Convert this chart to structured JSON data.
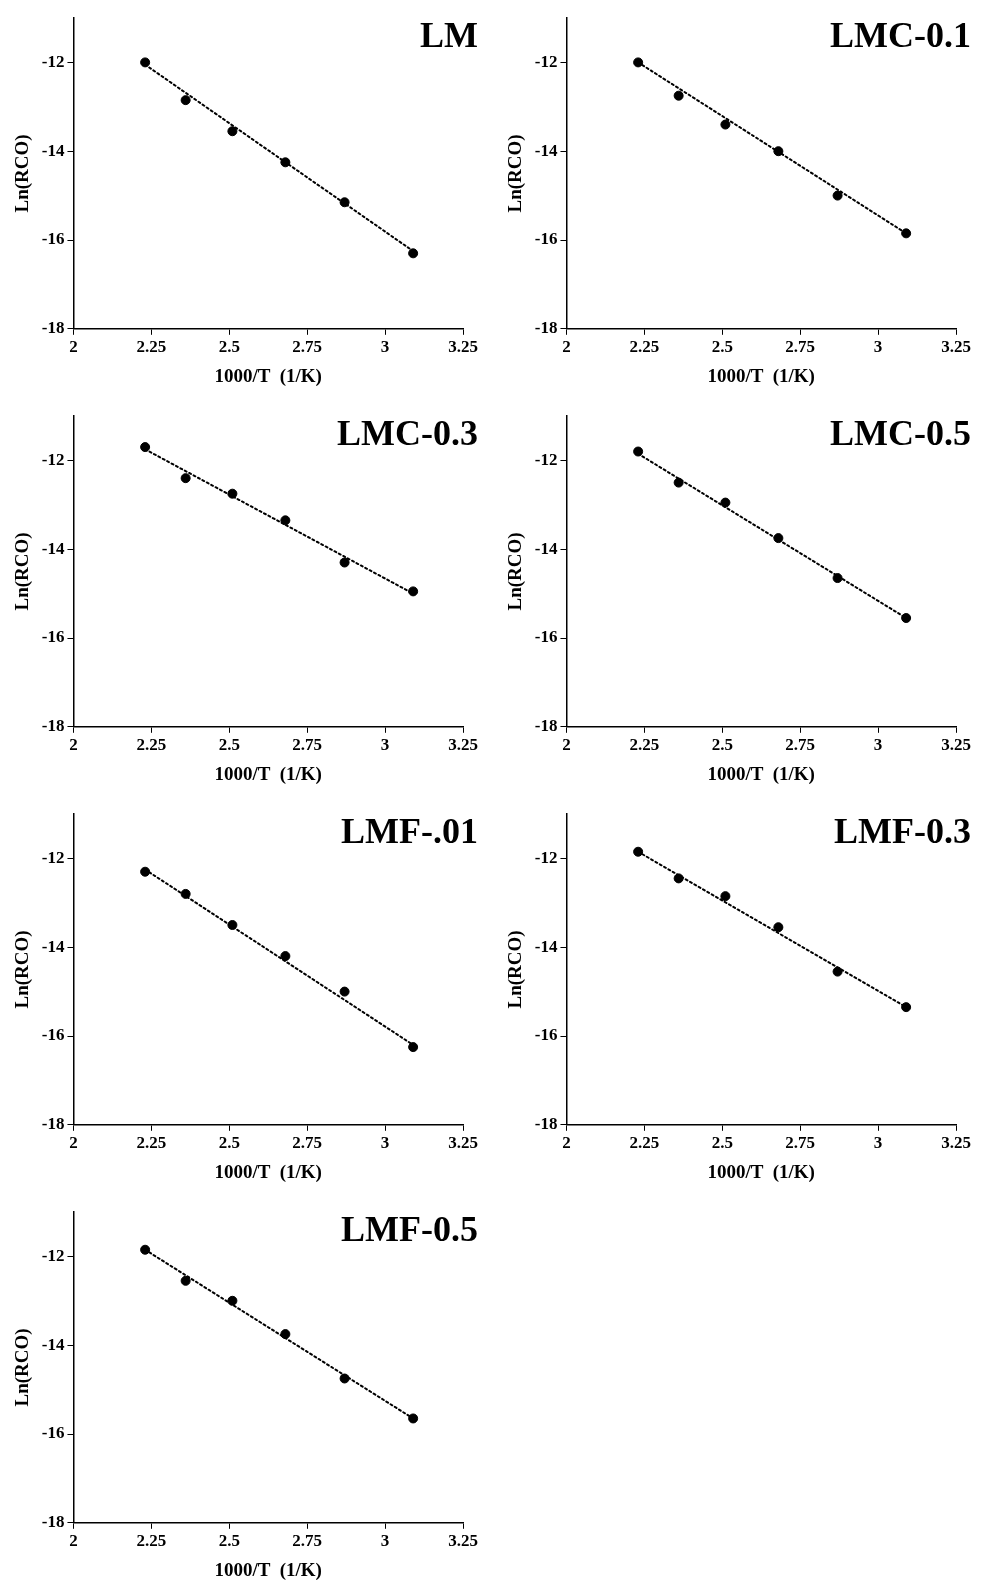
{
  "chart_data": [
    {
      "type": "scatter",
      "title": "LM",
      "xlabel": "1000/T  (1/K)",
      "ylabel": "Ln(RCO)",
      "xlim": [
        2,
        3.25
      ],
      "xticks": [
        2,
        2.25,
        2.5,
        2.75,
        3,
        3.25
      ],
      "ylim": [
        -18,
        -11
      ],
      "yticks": [
        -18,
        -16,
        -14,
        -12
      ],
      "grid": false,
      "series": [
        {
          "color": "#000000",
          "marker": "circle",
          "x": [
            2.23,
            2.36,
            2.51,
            2.68,
            2.87,
            3.09
          ],
          "values": [
            -12.0,
            -12.85,
            -13.55,
            -14.25,
            -15.15,
            -16.3
          ]
        },
        {
          "type": "line",
          "marker": "none",
          "line_style": "dotted",
          "color": "#000000",
          "x": [
            2.23,
            3.09
          ],
          "values": [
            -12.05,
            -16.25
          ]
        }
      ]
    },
    {
      "type": "scatter",
      "title": "LMC-0.1",
      "xlabel": "1000/T  (1/K)",
      "ylabel": "Ln(RCO)",
      "xlim": [
        2,
        3.25
      ],
      "xticks": [
        2,
        2.25,
        2.5,
        2.75,
        3,
        3.25
      ],
      "ylim": [
        -18,
        -11
      ],
      "yticks": [
        -18,
        -16,
        -14,
        -12
      ],
      "grid": false,
      "series": [
        {
          "color": "#000000",
          "marker": "circle",
          "x": [
            2.23,
            2.36,
            2.51,
            2.68,
            2.87,
            3.09
          ],
          "values": [
            -12.0,
            -12.75,
            -13.4,
            -14.0,
            -15.0,
            -15.85
          ]
        },
        {
          "type": "line",
          "marker": "none",
          "line_style": "dotted",
          "color": "#000000",
          "x": [
            2.23,
            3.09
          ],
          "values": [
            -12.0,
            -15.85
          ]
        }
      ]
    },
    {
      "type": "scatter",
      "title": "LMC-0.3",
      "xlabel": "1000/T  (1/K)",
      "ylabel": "Ln(RCO)",
      "xlim": [
        2,
        3.25
      ],
      "xticks": [
        2,
        2.25,
        2.5,
        2.75,
        3,
        3.25
      ],
      "ylim": [
        -18,
        -11
      ],
      "yticks": [
        -18,
        -16,
        -14,
        -12
      ],
      "grid": false,
      "series": [
        {
          "color": "#000000",
          "marker": "circle",
          "x": [
            2.23,
            2.36,
            2.51,
            2.68,
            2.87,
            3.09
          ],
          "values": [
            -11.7,
            -12.4,
            -12.75,
            -13.35,
            -14.3,
            -14.95
          ]
        },
        {
          "type": "line",
          "marker": "none",
          "line_style": "dotted",
          "color": "#000000",
          "x": [
            2.23,
            3.09
          ],
          "values": [
            -11.75,
            -15.0
          ]
        }
      ]
    },
    {
      "type": "scatter",
      "title": "LMC-0.5",
      "xlabel": "1000/T  (1/K)",
      "ylabel": "Ln(RCO)",
      "xlim": [
        2,
        3.25
      ],
      "xticks": [
        2,
        2.25,
        2.5,
        2.75,
        3,
        3.25
      ],
      "ylim": [
        -18,
        -11
      ],
      "yticks": [
        -18,
        -16,
        -14,
        -12
      ],
      "grid": false,
      "series": [
        {
          "color": "#000000",
          "marker": "circle",
          "x": [
            2.23,
            2.36,
            2.51,
            2.68,
            2.87,
            3.09
          ],
          "values": [
            -11.8,
            -12.5,
            -12.95,
            -13.75,
            -14.65,
            -15.55
          ]
        },
        {
          "type": "line",
          "marker": "none",
          "line_style": "dotted",
          "color": "#000000",
          "x": [
            2.23,
            3.09
          ],
          "values": [
            -11.85,
            -15.55
          ]
        }
      ]
    },
    {
      "type": "scatter",
      "title": "LMF-.01",
      "xlabel": "1000/T  (1/K)",
      "ylabel": "Ln(RCO)",
      "xlim": [
        2,
        3.25
      ],
      "xticks": [
        2,
        2.25,
        2.5,
        2.75,
        3,
        3.25
      ],
      "ylim": [
        -18,
        -11
      ],
      "yticks": [
        -18,
        -16,
        -14,
        -12
      ],
      "grid": false,
      "series": [
        {
          "color": "#000000",
          "marker": "circle",
          "x": [
            2.23,
            2.36,
            2.51,
            2.68,
            2.87,
            3.09
          ],
          "values": [
            -12.3,
            -12.8,
            -13.5,
            -14.2,
            -15.0,
            -16.25
          ]
        },
        {
          "type": "line",
          "marker": "none",
          "line_style": "dotted",
          "color": "#000000",
          "x": [
            2.23,
            3.09
          ],
          "values": [
            -12.25,
            -16.2
          ]
        }
      ]
    },
    {
      "type": "scatter",
      "title": "LMF-0.3",
      "xlabel": "1000/T  (1/K)",
      "ylabel": "Ln(RCO)",
      "xlim": [
        2,
        3.25
      ],
      "xticks": [
        2,
        2.25,
        2.5,
        2.75,
        3,
        3.25
      ],
      "ylim": [
        -18,
        -11
      ],
      "yticks": [
        -18,
        -16,
        -14,
        -12
      ],
      "grid": false,
      "series": [
        {
          "color": "#000000",
          "marker": "circle",
          "x": [
            2.23,
            2.36,
            2.51,
            2.68,
            2.87,
            3.09
          ],
          "values": [
            -11.85,
            -12.45,
            -12.85,
            -13.55,
            -14.55,
            -15.35
          ]
        },
        {
          "type": "line",
          "marker": "none",
          "line_style": "dotted",
          "color": "#000000",
          "x": [
            2.23,
            3.09
          ],
          "values": [
            -11.85,
            -15.35
          ]
        }
      ]
    },
    {
      "type": "scatter",
      "title": "LMF-0.5",
      "xlabel": "1000/T  (1/K)",
      "ylabel": "Ln(RCO)",
      "xlim": [
        2,
        3.25
      ],
      "xticks": [
        2,
        2.25,
        2.5,
        2.75,
        3,
        3.25
      ],
      "ylim": [
        -18,
        -11
      ],
      "yticks": [
        -18,
        -16,
        -14,
        -12
      ],
      "grid": false,
      "series": [
        {
          "color": "#000000",
          "marker": "circle",
          "x": [
            2.23,
            2.36,
            2.51,
            2.68,
            2.87,
            3.09
          ],
          "values": [
            -11.85,
            -12.55,
            -13.0,
            -13.75,
            -14.75,
            -15.65
          ]
        },
        {
          "type": "line",
          "marker": "none",
          "line_style": "dotted",
          "color": "#000000",
          "x": [
            2.23,
            3.09
          ],
          "values": [
            -11.85,
            -15.65
          ]
        }
      ]
    }
  ]
}
